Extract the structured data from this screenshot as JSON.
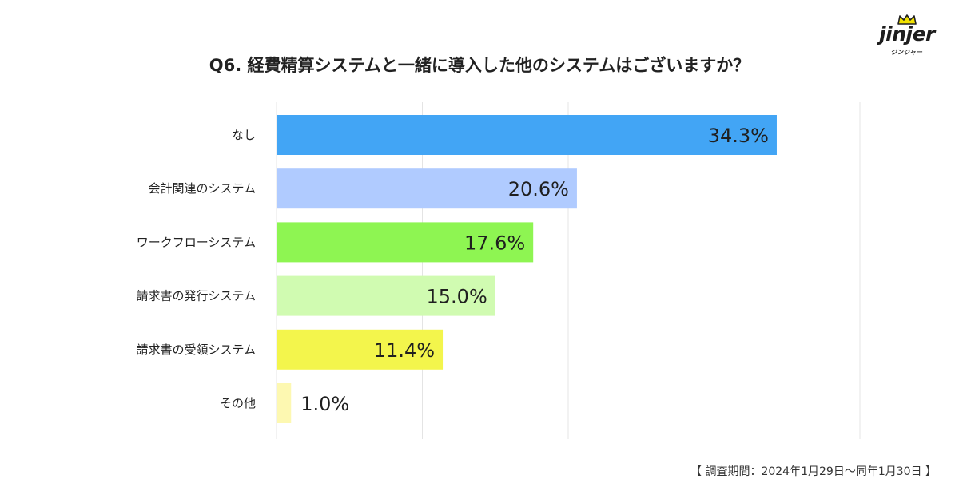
{
  "brand": {
    "name": "jinjer",
    "sub": "ジンジャー",
    "accent": "#f2e200"
  },
  "footnote": "【 調査期間：2024年1月29日〜同年1月30日 】",
  "chart_data": {
    "type": "bar",
    "orientation": "horizontal",
    "title": "Q6. 経費精算システムと一緒に導入した他のシステムはございますか？",
    "xlabel": "",
    "ylabel": "",
    "xlim": [
      0,
      40
    ],
    "grid": true,
    "legend": "none",
    "categories": [
      "なし",
      "会計関連のシステム",
      "ワークフローシステム",
      "請求書の発行システム",
      "請求書の受領システム",
      "その他"
    ],
    "values": [
      34.3,
      20.6,
      17.6,
      15.0,
      11.4,
      1.0
    ],
    "value_labels": [
      "34.3%",
      "20.6%",
      "17.6%",
      "15.0%",
      "11.4%",
      "1.0%"
    ],
    "colors": [
      "#42a5f5",
      "#b0cbff",
      "#8ef552",
      "#d0fbb1",
      "#f3f54c",
      "#fdf8b1"
    ]
  }
}
